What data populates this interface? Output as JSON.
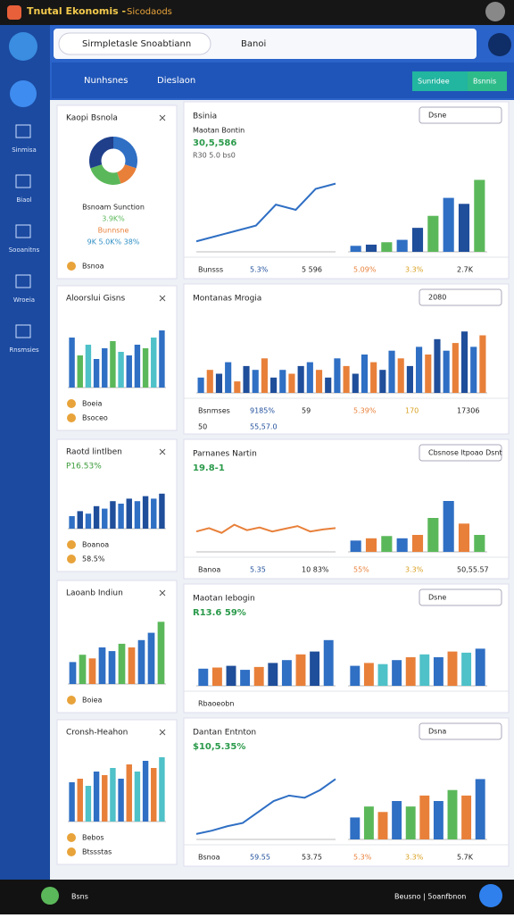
{
  "status_bar": {
    "title": "Tnutal Ekonomis -",
    "subtitle": "Sicodaods"
  },
  "search": {
    "left": "Sirmpletasle Snoabtiann",
    "right": "Banoi"
  },
  "toolbar": {
    "tabs": [
      "Nunhsnes",
      "Dieslaon"
    ],
    "buttons": [
      "Sunridee",
      "Bsnnis"
    ]
  },
  "sidebar": [
    "Sinmisa",
    "Biaol",
    "Sooanitns",
    "Wroeia",
    "Rnsmsies"
  ],
  "left_cards": [
    {
      "title": "Kaopi Bsnola",
      "chart": {
        "type": "pie",
        "values": [
          30,
          15,
          25,
          30
        ],
        "colors": [
          "#2f6fc4",
          "#e8803a",
          "#5bb85a",
          "#1f3f8a"
        ]
      },
      "lines": [
        "Bsnoam Sunction",
        "3.9K%",
        "Bunnsne",
        "9K 5.0K%  38%"
      ],
      "footer": [
        "Bsnoa"
      ]
    },
    {
      "title": "Aloorslui Gisns",
      "chart": {
        "type": "bar",
        "values": [
          70,
          45,
          60,
          40,
          55,
          65,
          50,
          45,
          60,
          55,
          70,
          80
        ],
        "ylim": [
          0,
          100
        ],
        "colors": [
          "#2f6fc4",
          "#5bb85a",
          "#4fc1c8",
          "#2f6fc4"
        ]
      },
      "lines": [],
      "footer": [
        "Boeia",
        "Bsoceo"
      ]
    },
    {
      "title": "Raotd lintlben",
      "chart": {
        "type": "bar",
        "values": [
          25,
          35,
          30,
          45,
          40,
          55,
          50,
          60,
          55,
          65,
          60,
          70
        ],
        "ylim": [
          0,
          100
        ],
        "colors": [
          "#2f6fc4",
          "#1f4e9a"
        ]
      },
      "lines": [
        "P16.53%"
      ],
      "footer": [
        "Boanoa",
        "58.5%"
      ]
    },
    {
      "title": "Laoanb Indiun",
      "chart": {
        "type": "bar",
        "values": [
          30,
          40,
          35,
          50,
          45,
          55,
          50,
          60,
          70,
          85
        ],
        "ylim": [
          0,
          100
        ],
        "colors": [
          "#2f6fc4",
          "#5bb85a",
          "#e8803a",
          "#2f6fc4"
        ]
      },
      "lines": [],
      "footer": [
        "Boiea"
      ]
    },
    {
      "title": "Cronsh-Heahon",
      "chart": {
        "type": "bar",
        "values": [
          55,
          60,
          50,
          70,
          65,
          75,
          60,
          80,
          70,
          85,
          75,
          90
        ],
        "ylim": [
          0,
          100
        ],
        "colors": [
          "#2f6fc4",
          "#e8803a",
          "#4fc1c8"
        ]
      },
      "lines": [],
      "footer": [
        "Bebos",
        "Btssstas"
      ]
    }
  ],
  "right_cards": [
    {
      "title": "Bsinia",
      "actions": [
        "Dsne"
      ],
      "header": "Maotan Bontin",
      "value": "30,5,586",
      "sub": "R30 5.0 bs0",
      "charts": [
        {
          "type": "line",
          "values": [
            10,
            15,
            20,
            25,
            45,
            40,
            60,
            65
          ],
          "ylim": [
            0,
            80
          ],
          "color": "#2f6fc4"
        },
        {
          "type": "bar",
          "values": [
            5,
            6,
            8,
            10,
            20,
            30,
            45,
            40,
            60
          ],
          "ylim": [
            0,
            70
          ],
          "colors": [
            "#2f6fc4",
            "#1f4e9a",
            "#5bb85a"
          ]
        }
      ],
      "stats": [
        "Bunsss",
        "5.3%",
        "5 596",
        "5.09%",
        "3.3%",
        "2.7K"
      ]
    },
    {
      "title": "Montanas Mrogia",
      "actions": [
        "2080"
      ],
      "header": "",
      "value": "",
      "sub": "",
      "charts": [
        {
          "type": "bar",
          "values": [
            20,
            30,
            25,
            40,
            15,
            35,
            30,
            45,
            20,
            30,
            25,
            35,
            40,
            30,
            20,
            45,
            35,
            25,
            50,
            40,
            30,
            55,
            45,
            35,
            60,
            50,
            70,
            55,
            65,
            80,
            60,
            75
          ],
          "ylim": [
            0,
            100
          ],
          "colors": [
            "#2f6fc4",
            "#e8803a",
            "#1f4e9a"
          ]
        }
      ],
      "stats": [
        "Bsnmses",
        "9185%",
        "59",
        "5.39%",
        "170",
        "17306",
        "50",
        "55,57.0"
      ]
    },
    {
      "title": "Parnanes Nartin",
      "actions": [
        "Cbsnose ltpoao Dsnt"
      ],
      "header": "",
      "value": "19.8-1",
      "sub": "",
      "charts": [
        {
          "type": "line",
          "values": [
            30,
            35,
            28,
            40,
            32,
            36,
            30,
            34,
            38,
            30,
            33,
            35
          ],
          "ylim": [
            0,
            100
          ],
          "color": "#e8803a"
        },
        {
          "type": "bar",
          "values": [
            10,
            12,
            14,
            12,
            15,
            30,
            45,
            25,
            15
          ],
          "ylim": [
            0,
            60
          ],
          "colors": [
            "#2f6fc4",
            "#e8803a",
            "#5bb85a"
          ]
        }
      ],
      "stats": [
        "Banoa",
        "5.35",
        "10 83%",
        "55%",
        "3.3%",
        "50,55.57"
      ]
    },
    {
      "title": "Maotan Iebogin",
      "actions": [
        "Dsne"
      ],
      "header": "",
      "value": "R13.6 59%",
      "sub": "",
      "charts": [
        {
          "type": "bar",
          "values": [
            30,
            32,
            35,
            28,
            33,
            40,
            45,
            55,
            60,
            80
          ],
          "ylim": [
            0,
            100
          ],
          "colors": [
            "#2f6fc4",
            "#e8803a",
            "#1f4e9a"
          ]
        },
        {
          "type": "bar",
          "values": [
            35,
            40,
            38,
            45,
            50,
            55,
            50,
            60,
            58,
            65
          ],
          "ylim": [
            0,
            100
          ],
          "colors": [
            "#2f6fc4",
            "#e8803a",
            "#4fc1c8"
          ]
        }
      ],
      "stats": [
        "Rbaoeobn"
      ]
    },
    {
      "title": "Dantan Entnton",
      "actions": [
        "Dsna"
      ],
      "header": "",
      "value": "$10,5.35%",
      "sub": "",
      "charts": [
        {
          "type": "line",
          "values": [
            5,
            8,
            12,
            15,
            25,
            35,
            40,
            38,
            45,
            55
          ],
          "ylim": [
            0,
            70
          ],
          "color": "#2f6fc4"
        },
        {
          "type": "bar",
          "values": [
            20,
            30,
            25,
            35,
            30,
            40,
            35,
            45,
            40,
            55
          ],
          "ylim": [
            0,
            70
          ],
          "colors": [
            "#2f6fc4",
            "#5bb85a",
            "#e8803a"
          ]
        }
      ],
      "stats": [
        "Bsnoa",
        "59.55",
        "53.75",
        "5.3%",
        "3.3%",
        "5.7K"
      ]
    }
  ],
  "bottom_bar": {
    "left": "Bsns",
    "right": "Beusno | 5oanfbnon"
  }
}
